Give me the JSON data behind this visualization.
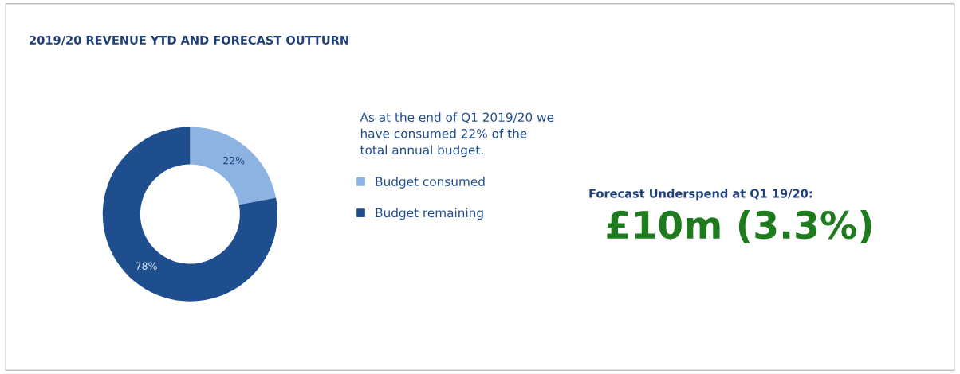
{
  "chart_data": {
    "type": "donut",
    "title": "2019/20 REVENUE YTD AND FORECAST OUTTURN",
    "categories": [
      "Budget consumed",
      "Budget remaining"
    ],
    "values": [
      22,
      78
    ],
    "value_labels": [
      "22%",
      "78%"
    ],
    "colors": [
      "#8db3e2",
      "#1f4e8f"
    ],
    "legend": "right",
    "annotations": [
      "As at the end of Q1 2019/20 we\nhave consumed 22% of the\ntotal annual budget.",
      "Forecast Underspend at Q1 19/20:",
      "£10m (3.3%)"
    ]
  }
}
